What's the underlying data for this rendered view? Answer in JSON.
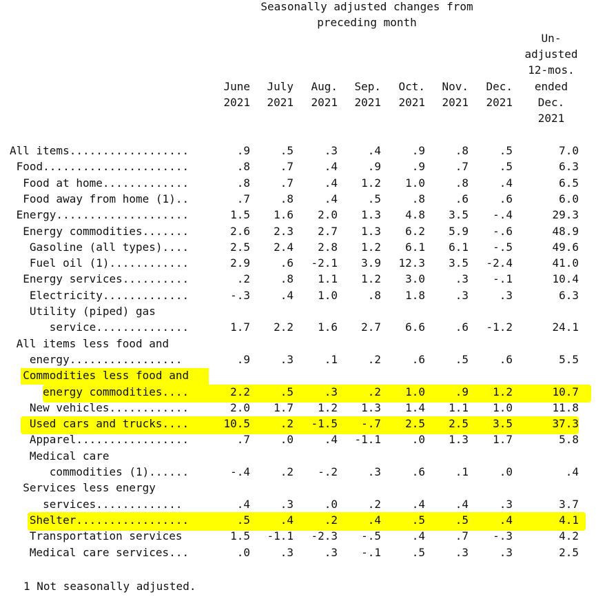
{
  "header": {
    "title_line1": "Seasonally adjusted changes from",
    "title_line2": "preceding month",
    "unadj_lines": [
      "Un-",
      "adjusted",
      "12-mos.",
      "ended",
      "Dec.",
      "2021"
    ]
  },
  "columns": [
    {
      "month": "June",
      "year": "2021"
    },
    {
      "month": "July",
      "year": "2021"
    },
    {
      "month": "Aug.",
      "year": "2021"
    },
    {
      "month": "Sep.",
      "year": "2021"
    },
    {
      "month": "Oct.",
      "year": "2021"
    },
    {
      "month": "Nov.",
      "year": "2021"
    },
    {
      "month": "Dec.",
      "year": "2021"
    }
  ],
  "rows": [
    {
      "label": "All items..................",
      "values": [
        ".9",
        ".5",
        ".3",
        ".4",
        ".9",
        ".8",
        ".5",
        "7.0"
      ]
    },
    {
      "label": " Food......................",
      "values": [
        ".8",
        ".7",
        ".4",
        ".9",
        ".9",
        ".7",
        ".5",
        "6.3"
      ]
    },
    {
      "label": "  Food at home.............",
      "values": [
        ".8",
        ".7",
        ".4",
        "1.2",
        "1.0",
        ".8",
        ".4",
        "6.5"
      ]
    },
    {
      "label": "  Food away from home (1)..",
      "values": [
        ".7",
        ".8",
        ".4",
        ".5",
        ".8",
        ".6",
        ".6",
        "6.0"
      ]
    },
    {
      "label": " Energy....................",
      "values": [
        "1.5",
        "1.6",
        "2.0",
        "1.3",
        "4.8",
        "3.5",
        "-.4",
        "29.3"
      ]
    },
    {
      "label": "  Energy commodities.......",
      "values": [
        "2.6",
        "2.3",
        "2.7",
        "1.3",
        "6.2",
        "5.9",
        "-.6",
        "48.9"
      ]
    },
    {
      "label": "   Gasoline (all types)....",
      "values": [
        "2.5",
        "2.4",
        "2.8",
        "1.2",
        "6.1",
        "6.1",
        "-.5",
        "49.6"
      ]
    },
    {
      "label": "   Fuel oil (1)............",
      "values": [
        "2.9",
        ".6",
        "-2.1",
        "3.9",
        "12.3",
        "3.5",
        "-2.4",
        "41.0"
      ]
    },
    {
      "label": "  Energy services..........",
      "values": [
        ".2",
        ".8",
        "1.1",
        "1.2",
        "3.0",
        ".3",
        "-.1",
        "10.4"
      ]
    },
    {
      "label": "   Electricity.............",
      "values": [
        "-.3",
        ".4",
        "1.0",
        ".8",
        "1.8",
        ".3",
        ".3",
        "6.3"
      ]
    },
    {
      "label": "   Utility (piped) gas",
      "values": []
    },
    {
      "label": "      service..............",
      "values": [
        "1.7",
        "2.2",
        "1.6",
        "2.7",
        "6.6",
        ".6",
        "-1.2",
        "24.1"
      ]
    },
    {
      "label": " All items less food and",
      "values": []
    },
    {
      "label": "   energy.................",
      "values": [
        ".9",
        ".3",
        ".1",
        ".2",
        ".6",
        ".5",
        ".6",
        "5.5"
      ]
    },
    {
      "label": "  Commodities less food and",
      "values": []
    },
    {
      "label": "     energy commodities....",
      "values": [
        "2.2",
        ".5",
        ".3",
        ".2",
        "1.0",
        ".9",
        "1.2",
        "10.7"
      ]
    },
    {
      "label": "   New vehicles............",
      "values": [
        "2.0",
        "1.7",
        "1.2",
        "1.3",
        "1.4",
        "1.1",
        "1.0",
        "11.8"
      ]
    },
    {
      "label": "   Used cars and trucks....",
      "values": [
        "10.5",
        ".2",
        "-1.5",
        "-.7",
        "2.5",
        "2.5",
        "3.5",
        "37.3"
      ]
    },
    {
      "label": "   Apparel.................",
      "values": [
        ".7",
        ".0",
        ".4",
        "-1.1",
        ".0",
        "1.3",
        "1.7",
        "5.8"
      ]
    },
    {
      "label": "   Medical care",
      "values": []
    },
    {
      "label": "      commodities (1)......",
      "values": [
        "-.4",
        ".2",
        "-.2",
        ".3",
        ".6",
        ".1",
        ".0",
        ".4"
      ]
    },
    {
      "label": "  Services less energy",
      "values": []
    },
    {
      "label": "     services.............",
      "values": [
        ".4",
        ".3",
        ".0",
        ".2",
        ".4",
        ".4",
        ".3",
        "3.7"
      ]
    },
    {
      "label": "   Shelter.................",
      "values": [
        ".5",
        ".4",
        ".2",
        ".4",
        ".5",
        ".5",
        ".4",
        "4.1"
      ]
    },
    {
      "label": "   Transportation services",
      "values": [
        "1.5",
        "-1.1",
        "-2.3",
        "-.5",
        ".4",
        ".7",
        "-.3",
        "4.2"
      ]
    },
    {
      "label": "   Medical care services...",
      "values": [
        ".0",
        ".3",
        ".3",
        "-.1",
        ".5",
        ".3",
        ".3",
        "2.5"
      ]
    }
  ],
  "footnote": "1 Not seasonally adjusted.",
  "highlight_color": "#ffff00"
}
